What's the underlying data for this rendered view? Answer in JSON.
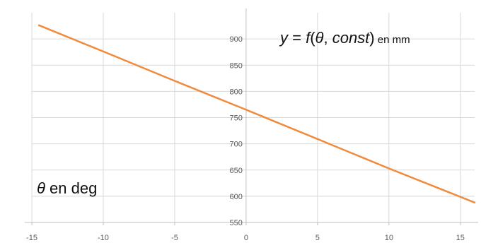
{
  "chart_data": {
    "type": "line",
    "title": "",
    "xlabel": "",
    "ylabel": "",
    "xlim": [
      -15,
      16
    ],
    "ylim": [
      550,
      950
    ],
    "x_ticks": [
      -15,
      -10,
      -5,
      0,
      5,
      10,
      15
    ],
    "x_tick_labels": [
      "-15",
      "-10",
      "-5",
      "0",
      "5",
      "10",
      "15"
    ],
    "y_ticks": [
      550,
      600,
      650,
      700,
      750,
      800,
      850,
      900
    ],
    "y_tick_labels": [
      "550",
      "600",
      "650",
      "700",
      "750",
      "800",
      "850",
      "900"
    ],
    "grid": true,
    "legend": "none",
    "series": [
      {
        "color": "#f08a3c",
        "x": [
          -14.5,
          -10,
          -5,
          0,
          5,
          10,
          16
        ],
        "y": [
          926,
          876,
          820,
          765,
          709,
          653,
          588
        ]
      }
    ],
    "annotations": {
      "top_right": {
        "y": "y",
        "eq": " = ",
        "f": "f",
        "open": "(",
        "theta": "θ",
        "comma": ", ",
        "const": "const",
        "close": ")",
        "unit": " en mm"
      },
      "bottom_left": {
        "theta": "θ",
        "unit": " en deg"
      }
    }
  }
}
